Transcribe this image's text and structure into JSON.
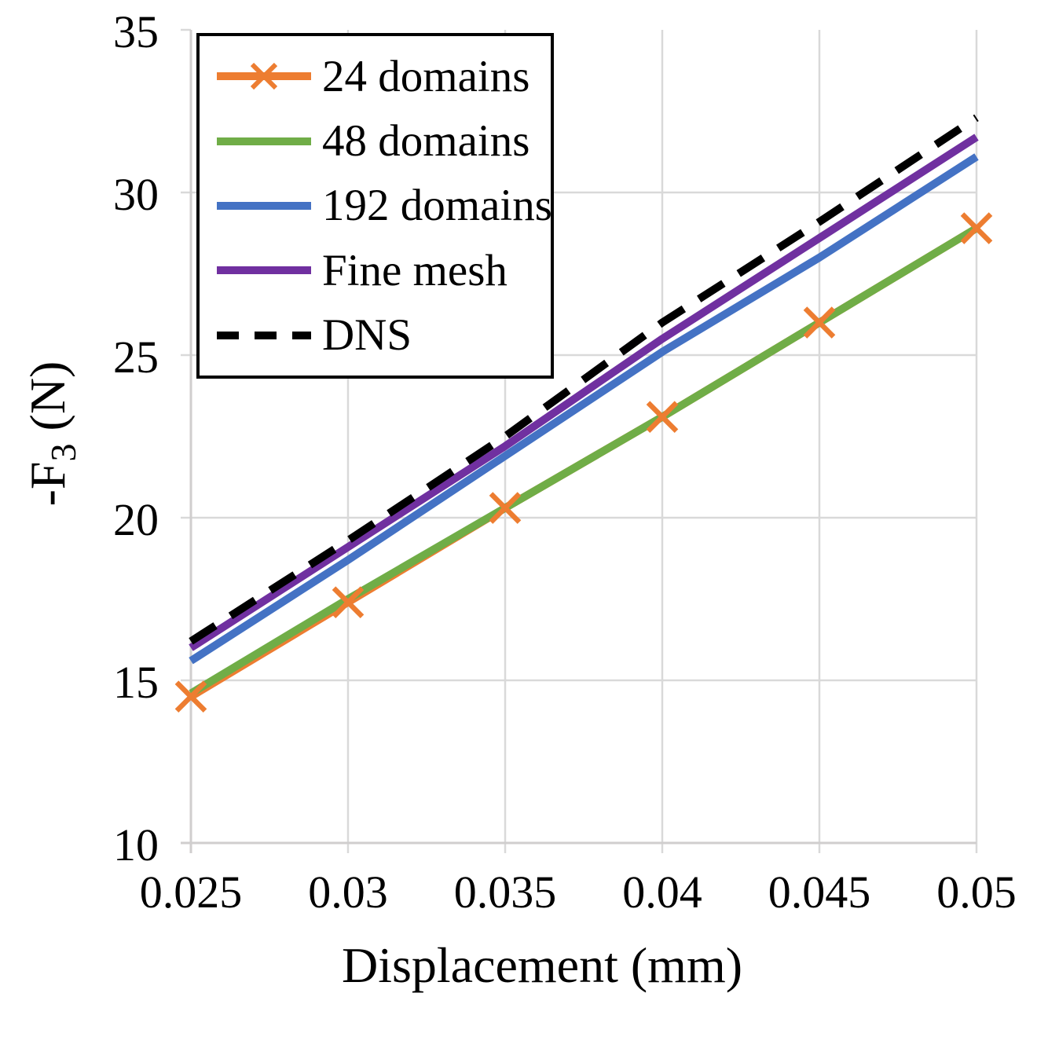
{
  "chart_data": {
    "type": "line",
    "title": "",
    "xlabel": "Displacement (mm)",
    "ylabel_parts": {
      "main": "-F",
      "sub": "3",
      "unit": " (N)"
    },
    "x": [
      0.025,
      0.03,
      0.035,
      0.04,
      0.045,
      0.05
    ],
    "xlim": [
      0.025,
      0.05
    ],
    "ylim": [
      10,
      35
    ],
    "x_tick_labels": [
      "0.025",
      "0.03",
      "0.035",
      "0.04",
      "0.045",
      "0.05"
    ],
    "y_tick_labels": [
      "35",
      "30",
      "25",
      "20",
      "15",
      "10"
    ],
    "y_ticks": [
      10,
      15,
      20,
      25,
      30,
      35
    ],
    "grid": true,
    "legend_position": "top-left",
    "colors": {
      "gridline": "#D9D9D9",
      "axis_line": "#D0CECE",
      "text": "#000000"
    },
    "series": [
      {
        "name": "24 domains",
        "color": "#ED7D31",
        "style": "solid",
        "marker": "x",
        "values": [
          14.5,
          17.4,
          20.3,
          23.1,
          26.0,
          28.9
        ]
      },
      {
        "name": "48 domains",
        "color": "#70AD47",
        "style": "solid",
        "marker": "none",
        "values": [
          14.6,
          17.5,
          20.3,
          23.1,
          26.0,
          28.9
        ]
      },
      {
        "name": "192 domains",
        "color": "#4472C4",
        "style": "solid",
        "marker": "none",
        "values": [
          15.6,
          18.7,
          21.9,
          25.1,
          28.0,
          31.1
        ]
      },
      {
        "name": "Fine mesh",
        "color": "#7030A0",
        "style": "solid",
        "marker": "none",
        "values": [
          16.0,
          19.1,
          22.2,
          25.5,
          28.6,
          31.7
        ]
      },
      {
        "name": "DNS",
        "color": "#000000",
        "style": "dashed",
        "marker": "none",
        "values": [
          16.2,
          19.3,
          22.5,
          26.0,
          29.1,
          32.3
        ]
      }
    ]
  }
}
